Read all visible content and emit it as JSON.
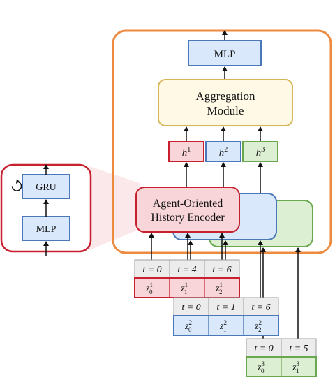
{
  "colors": {
    "orange": "#ec8a3f",
    "red_border": "#c8202f",
    "red_fill": "#f8d5d8",
    "blue_border": "#4a78b8",
    "blue_fill": "#dae8fc",
    "green_border": "#6aa84f",
    "green_fill": "#dcefd3",
    "yellow_border": "#d6b656",
    "yellow_fill": "#fff9e6",
    "gray_fill": "#ececec",
    "gray_border": "#9e9e9e"
  },
  "main": {
    "mlp_label": "MLP",
    "aggregation_line1": "Aggregation",
    "aggregation_line2": "Module",
    "h_base": "h",
    "h_sups": [
      "1",
      "2",
      "3"
    ],
    "encoder_line1": "Agent-Oriented",
    "encoder_line2": "History Encoder"
  },
  "detail": {
    "gru_label": "GRU",
    "mlp_label": "MLP"
  },
  "agents": [
    {
      "times": [
        "t = 0",
        "t = 4",
        "t = 6"
      ],
      "z_sup": "1",
      "z_subs": [
        "0",
        "1",
        "2"
      ]
    },
    {
      "times": [
        "t = 0",
        "t = 1",
        "t = 6"
      ],
      "z_sup": "2",
      "z_subs": [
        "0",
        "1",
        "2"
      ]
    },
    {
      "times": [
        "t = 0",
        "t = 5"
      ],
      "z_sup": "3",
      "z_subs": [
        "0",
        "1"
      ]
    }
  ]
}
